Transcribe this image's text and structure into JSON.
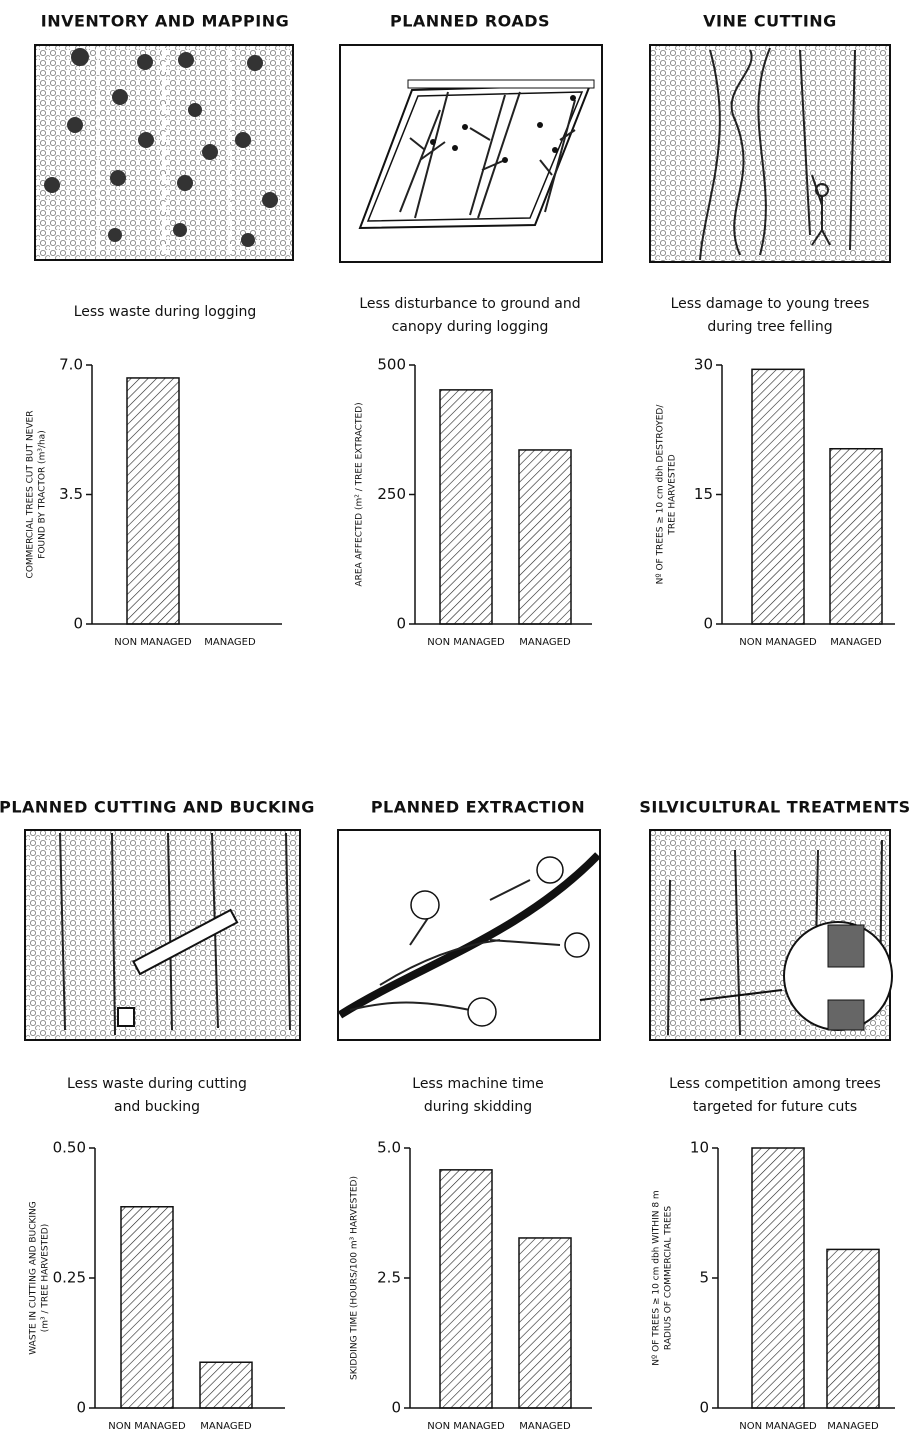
{
  "chart_data": [
    {
      "type": "bar",
      "heading": "INVENTORY AND MAPPING",
      "title": [
        "Less waste during logging"
      ],
      "ylabel": [
        "COMMERCIAL TREES CUT BUT NEVER",
        "FOUND BY TRACTOR (m³/ha)"
      ],
      "categories": [
        "NON MANAGED",
        "MANAGED"
      ],
      "values": [
        6.65,
        0
      ],
      "ylim": [
        0,
        7
      ],
      "yticks": [
        0,
        3.5,
        {
          "value": 7,
          "label": "7.0"
        }
      ]
    },
    {
      "type": "bar",
      "heading": "PLANNED ROADS",
      "title": [
        "Less disturbance to ground and",
        "canopy during logging"
      ],
      "ylabel": [
        "AREA AFFECTED (m² / TREE EXTRACTED)"
      ],
      "categories": [
        "NON MANAGED",
        "MANAGED"
      ],
      "values": [
        452,
        336
      ],
      "ylim": [
        0,
        500
      ],
      "yticks": [
        0,
        250,
        500
      ]
    },
    {
      "type": "bar",
      "heading": "VINE CUTTING",
      "title": [
        "Less damage to young trees",
        "during tree felling"
      ],
      "ylabel": [
        "Nº OF TREES ≥ 10 cm dbh DESTROYED/",
        "TREE HARVESTED"
      ],
      "categories": [
        "NON MANAGED",
        "MANAGED"
      ],
      "values": [
        29.5,
        20.3
      ],
      "ylim": [
        0,
        30
      ],
      "yticks": [
        0,
        15,
        30
      ]
    },
    {
      "type": "bar",
      "heading": "PLANNED CUTTING AND BUCKING",
      "title": [
        "Less waste during cutting",
        "and bucking"
      ],
      "ylabel": [
        "WASTE IN CUTTING AND BUCKING",
        "(m³ / TREE HARVESTED)"
      ],
      "categories": [
        "NON MANAGED",
        "MANAGED"
      ],
      "values": [
        0.387,
        0.088
      ],
      "ylim": [
        0,
        0.5
      ],
      "yticks": [
        0,
        0.25,
        {
          "value": 0.5,
          "label": "0.50"
        }
      ]
    },
    {
      "type": "bar",
      "heading": "PLANNED EXTRACTION",
      "title": [
        "Less machine time",
        "during skidding"
      ],
      "ylabel": [
        "SKIDDING TIME (HOURS/100 m³ HARVESTED)"
      ],
      "categories": [
        "NON MANAGED",
        "MANAGED"
      ],
      "values": [
        4.58,
        3.27
      ],
      "ylim": [
        0,
        5
      ],
      "yticks": [
        0,
        2.5,
        {
          "value": 5,
          "label": "5.0"
        }
      ]
    },
    {
      "type": "bar",
      "heading": "SILVICULTURAL TREATMENTS",
      "title": [
        "Less competition among trees",
        "targeted for future cuts"
      ],
      "ylabel": [
        "Nº OF TREES ≥ 10 cm dbh WITHIN 8 m",
        "RADIUS OF COMMERCIAL TREES"
      ],
      "categories": [
        "NON MANAGED",
        "MANAGED"
      ],
      "values": [
        10,
        6.1
      ],
      "ylim": [
        0,
        10
      ],
      "yticks": [
        0,
        5,
        10
      ]
    }
  ]
}
